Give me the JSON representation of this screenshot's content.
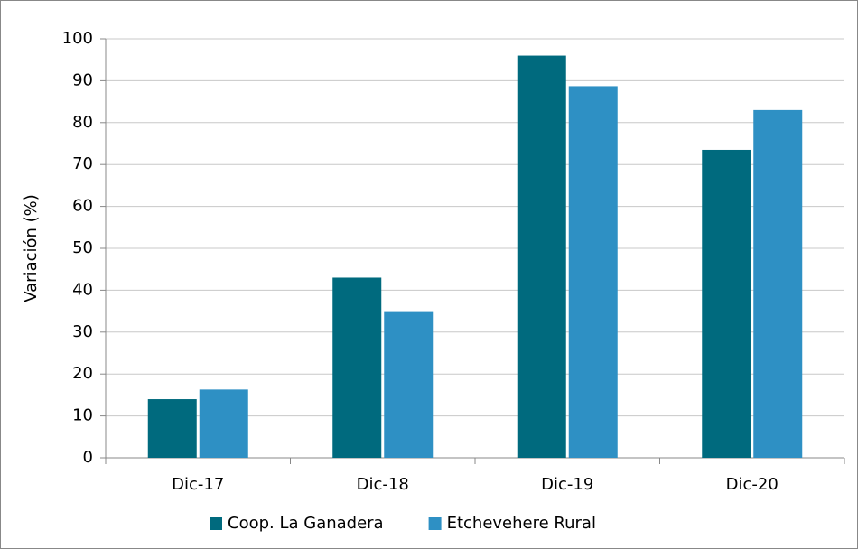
{
  "chart_data": {
    "type": "bar",
    "y_label": "Variación (%)",
    "categories": [
      "Dic-17",
      "Dic-18",
      "Dic-19",
      "Dic-20"
    ],
    "series": [
      {
        "name": "Coop. La Ganadera",
        "color": "#006a7e",
        "values": [
          14,
          43,
          96,
          73.5
        ]
      },
      {
        "name": "Etchevehere Rural",
        "color": "#2e90c4",
        "values": [
          16.3,
          35,
          88.7,
          83
        ]
      }
    ],
    "ylim": [
      0,
      100
    ],
    "yticks": [
      0,
      10,
      20,
      30,
      40,
      50,
      60,
      70,
      80,
      90,
      100
    ],
    "grid": true,
    "legend": "bottom"
  }
}
